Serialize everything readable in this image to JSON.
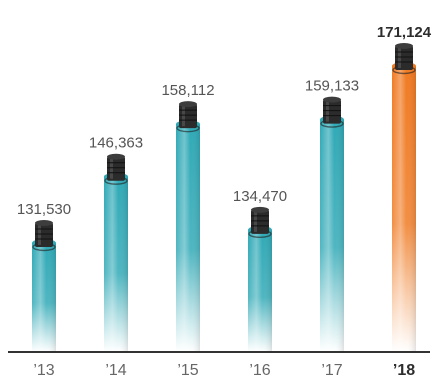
{
  "chart_data": {
    "type": "bar",
    "categories": [
      "’13",
      "’14",
      "’15",
      "’16",
      "’17",
      "’18"
    ],
    "values": [
      131530,
      146363,
      158112,
      134470,
      159133,
      171124
    ],
    "value_labels": [
      "131,530",
      "146,363",
      "158,112",
      "134,470",
      "159,133",
      "171,124"
    ],
    "highlight_index": 5,
    "ylim": [
      110000,
      172000
    ],
    "title": "",
    "xlabel": "",
    "ylabel": "",
    "grid": false,
    "legend": "none"
  },
  "colors": {
    "bar": "#2fa9b6",
    "highlight": "#f07a22",
    "coupling": "#2b2b2b",
    "axis": "#333333",
    "value_text": "#555555",
    "highlight_text": "#2d2d2d"
  },
  "icons": {
    "bar_cap": "pipe-coupling-icon"
  }
}
